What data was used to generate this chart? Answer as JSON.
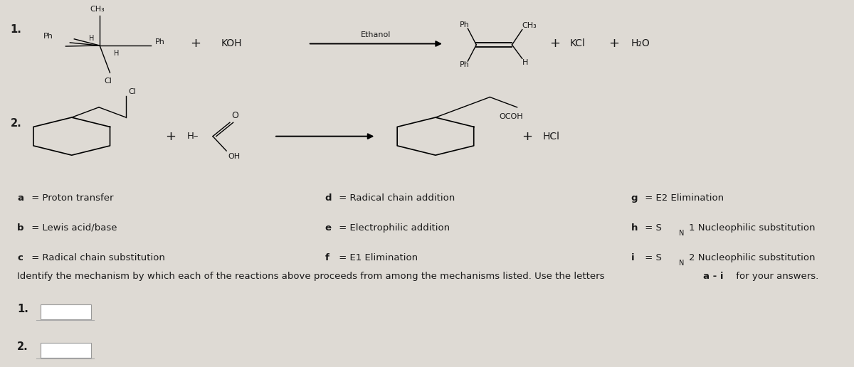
{
  "bg_color": "#dedad4",
  "text_color": "#1a1a1a",
  "figsize": [
    12.0,
    5.16
  ],
  "dpi": 100,
  "reaction1_label": "1.",
  "reaction2_label": "2.",
  "mechanism_col1": [
    [
      "a",
      " = Proton transfer"
    ],
    [
      "b",
      " = Lewis acid/base"
    ],
    [
      "c",
      " = Radical chain substitution"
    ]
  ],
  "mechanism_col2": [
    [
      "d",
      " = Radical chain addition"
    ],
    [
      "e",
      " = Electrophilic addition"
    ],
    [
      "f",
      " = E1 Elimination"
    ]
  ],
  "mechanism_col3": [
    [
      "g",
      " = E2 Elimination"
    ],
    [
      "h",
      " = S",
      "N",
      "1 Nucleophilic substitution"
    ],
    [
      "i",
      " = S",
      "N",
      "2 Nucleophilic substitution"
    ]
  ],
  "instruction": "Identify the mechanism by which each of the reactions above proceeds from among the mechanisms listed. Use the letters ",
  "instruction_bold": "a - i",
  "instruction_end": " for your answers.",
  "answer_labels": [
    "1.",
    "2."
  ]
}
